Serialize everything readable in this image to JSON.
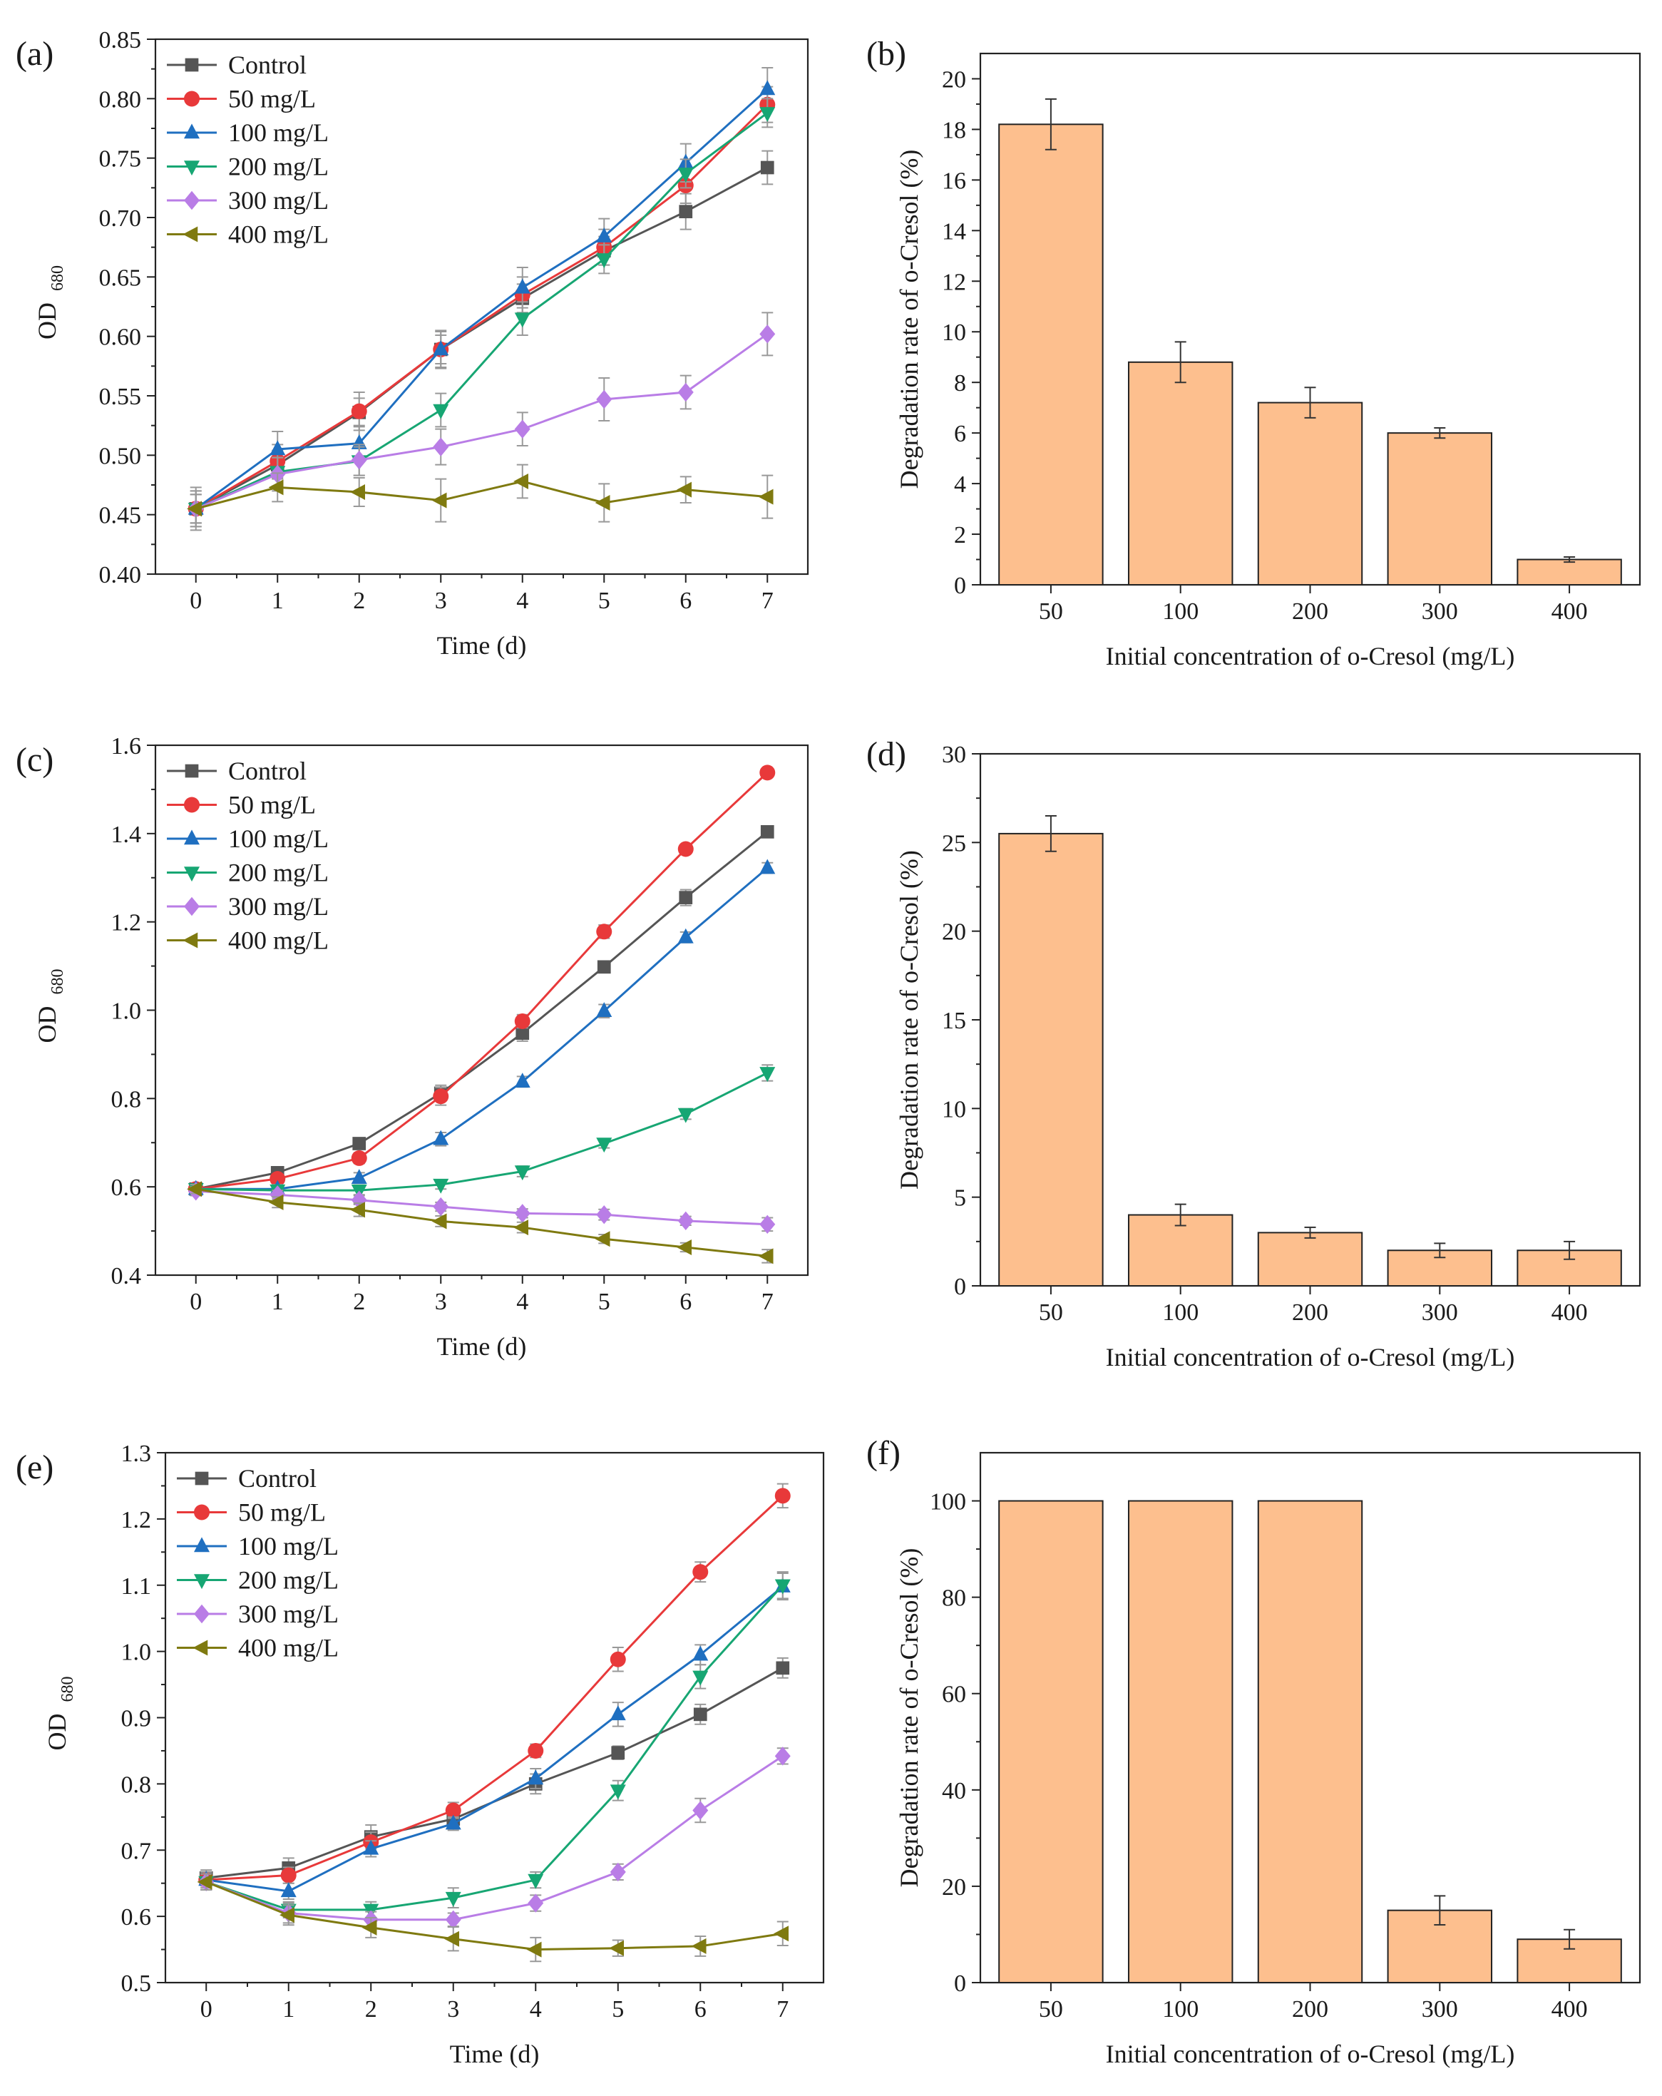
{
  "figure": {
    "background": "#ffffff",
    "series_colors": {
      "Control": "#555555",
      "50 mg/L": "#e8393a",
      "100 mg/L": "#1f6fc0",
      "200 mg/L": "#17a673",
      "300 mg/L": "#b97de6",
      "400 mg/L": "#7f7a10"
    },
    "bar_fill": "#fdbf8e",
    "bar_stroke": "#222222"
  },
  "chart_data": [
    {
      "id": "a",
      "panel_label": "(a)",
      "type": "line",
      "xlabel": "Time (d)",
      "ylabel": "OD",
      "ylabel_sub": "680",
      "x": [
        0,
        1,
        2,
        3,
        4,
        5,
        6,
        7
      ],
      "x_ticks": [
        "0",
        "1",
        "2",
        "3",
        "4",
        "5",
        "6",
        "7"
      ],
      "ylim": [
        0.4,
        0.85
      ],
      "y_ticks": [
        "0.40",
        "0.45",
        "0.50",
        "0.55",
        "0.60",
        "0.65",
        "0.70",
        "0.75",
        "0.80",
        "0.85"
      ],
      "legend_position": "top-left",
      "series": [
        {
          "name": "Control",
          "marker": "square",
          "values": [
            0.455,
            0.492,
            0.536,
            0.589,
            0.632,
            0.672,
            0.705,
            0.742
          ],
          "errors": [
            0.012,
            0.012,
            0.012,
            0.012,
            0.012,
            0.012,
            0.015,
            0.014
          ]
        },
        {
          "name": "50 mg/L",
          "marker": "circle",
          "values": [
            0.455,
            0.495,
            0.537,
            0.589,
            0.635,
            0.675,
            0.727,
            0.795
          ],
          "errors": [
            0.012,
            0.014,
            0.016,
            0.015,
            0.015,
            0.015,
            0.015,
            0.015
          ]
        },
        {
          "name": "100 mg/L",
          "marker": "triangle-up",
          "values": [
            0.455,
            0.505,
            0.51,
            0.589,
            0.641,
            0.684,
            0.746,
            0.808
          ],
          "errors": [
            0.015,
            0.015,
            0.015,
            0.016,
            0.017,
            0.015,
            0.016,
            0.018
          ]
        },
        {
          "name": "200 mg/L",
          "marker": "triangle-down",
          "values": [
            0.455,
            0.486,
            0.495,
            0.538,
            0.615,
            0.665,
            0.737,
            0.788
          ],
          "errors": [
            0.012,
            0.012,
            0.012,
            0.014,
            0.014,
            0.012,
            0.012,
            0.012
          ]
        },
        {
          "name": "300 mg/L",
          "marker": "diamond",
          "values": [
            0.455,
            0.484,
            0.496,
            0.507,
            0.522,
            0.547,
            0.553,
            0.602
          ],
          "errors": [
            0.015,
            0.014,
            0.013,
            0.015,
            0.014,
            0.018,
            0.014,
            0.018
          ]
        },
        {
          "name": "400 mg/L",
          "marker": "triangle-left",
          "values": [
            0.455,
            0.473,
            0.469,
            0.462,
            0.478,
            0.46,
            0.471,
            0.465
          ],
          "errors": [
            0.018,
            0.012,
            0.012,
            0.018,
            0.014,
            0.016,
            0.011,
            0.018
          ]
        }
      ]
    },
    {
      "id": "b",
      "panel_label": "(b)",
      "type": "bar",
      "xlabel": "Initial concentration of o-Cresol (mg/L)",
      "ylabel": "Degradation rate of o-Cresol (%)",
      "categories": [
        "50",
        "100",
        "200",
        "300",
        "400"
      ],
      "values": [
        18.2,
        8.8,
        7.2,
        6.0,
        1.0
      ],
      "errors": [
        1.0,
        0.8,
        0.6,
        0.2,
        0.1
      ],
      "ylim": [
        0,
        21
      ],
      "y_ticks": [
        "0",
        "2",
        "4",
        "6",
        "8",
        "10",
        "12",
        "14",
        "16",
        "18",
        "20"
      ]
    },
    {
      "id": "c",
      "panel_label": "(c)",
      "type": "line",
      "xlabel": "Time (d)",
      "ylabel": "OD",
      "ylabel_sub": "680",
      "x": [
        0,
        1,
        2,
        3,
        4,
        5,
        6,
        7
      ],
      "x_ticks": [
        "0",
        "1",
        "2",
        "3",
        "4",
        "5",
        "6",
        "7"
      ],
      "ylim": [
        0.4,
        1.6
      ],
      "y_ticks": [
        "0.4",
        "0.6",
        "0.8",
        "1.0",
        "1.2",
        "1.4",
        "1.6"
      ],
      "legend_position": "top-left",
      "series": [
        {
          "name": "Control",
          "marker": "square",
          "values": [
            0.595,
            0.632,
            0.698,
            0.812,
            0.948,
            1.098,
            1.255,
            1.404
          ],
          "errors": [
            0.01,
            0.01,
            0.012,
            0.018,
            0.018,
            0.012,
            0.018,
            0.012
          ]
        },
        {
          "name": "50 mg/L",
          "marker": "circle",
          "values": [
            0.595,
            0.618,
            0.665,
            0.805,
            0.975,
            1.178,
            1.365,
            1.538
          ],
          "errors": [
            0.01,
            0.01,
            0.012,
            0.02,
            0.015,
            0.015,
            0.01,
            0.01
          ]
        },
        {
          "name": "100 mg/L",
          "marker": "triangle-up",
          "values": [
            0.595,
            0.595,
            0.62,
            0.708,
            0.838,
            0.998,
            1.165,
            1.322
          ],
          "errors": [
            0.01,
            0.01,
            0.012,
            0.015,
            0.012,
            0.015,
            0.012,
            0.012
          ]
        },
        {
          "name": "200 mg/L",
          "marker": "triangle-down",
          "values": [
            0.595,
            0.592,
            0.592,
            0.605,
            0.635,
            0.698,
            0.765,
            0.858
          ],
          "errors": [
            0.01,
            0.01,
            0.01,
            0.01,
            0.012,
            0.01,
            0.012,
            0.018
          ]
        },
        {
          "name": "300 mg/L",
          "marker": "diamond",
          "values": [
            0.59,
            0.582,
            0.57,
            0.555,
            0.54,
            0.537,
            0.523,
            0.515
          ],
          "errors": [
            0.01,
            0.01,
            0.01,
            0.01,
            0.01,
            0.012,
            0.01,
            0.015
          ]
        },
        {
          "name": "400 mg/L",
          "marker": "triangle-left",
          "values": [
            0.595,
            0.565,
            0.548,
            0.522,
            0.508,
            0.482,
            0.463,
            0.443
          ],
          "errors": [
            0.01,
            0.012,
            0.015,
            0.012,
            0.012,
            0.01,
            0.01,
            0.015
          ]
        }
      ]
    },
    {
      "id": "d",
      "panel_label": "(d)",
      "type": "bar",
      "xlabel": "Initial concentration of o-Cresol (mg/L)",
      "ylabel": "Degradation rate of o-Cresol (%)",
      "categories": [
        "50",
        "100",
        "200",
        "300",
        "400"
      ],
      "values": [
        25.5,
        4.0,
        3.0,
        2.0,
        2.0
      ],
      "errors": [
        1.0,
        0.6,
        0.3,
        0.4,
        0.5
      ],
      "ylim": [
        0,
        30
      ],
      "y_ticks": [
        "0",
        "5",
        "10",
        "15",
        "20",
        "25",
        "30"
      ]
    },
    {
      "id": "e",
      "panel_label": "(e)",
      "type": "line",
      "xlabel": "Time (d)",
      "ylabel": "OD",
      "ylabel_sub": "680",
      "x": [
        0,
        1,
        2,
        3,
        4,
        5,
        6,
        7
      ],
      "x_ticks": [
        "0",
        "1",
        "2",
        "3",
        "4",
        "5",
        "6",
        "7"
      ],
      "ylim": [
        0.5,
        1.3
      ],
      "y_ticks": [
        "0.5",
        "0.6",
        "0.7",
        "0.8",
        "0.9",
        "1.0",
        "1.1",
        "1.2",
        "1.3"
      ],
      "legend_position": "top-left",
      "series": [
        {
          "name": "Control",
          "marker": "square",
          "values": [
            0.658,
            0.673,
            0.72,
            0.747,
            0.8,
            0.847,
            0.905,
            0.975
          ],
          "errors": [
            0.012,
            0.015,
            0.018,
            0.012,
            0.015,
            0.01,
            0.015,
            0.015
          ]
        },
        {
          "name": "50 mg/L",
          "marker": "circle",
          "values": [
            0.655,
            0.662,
            0.712,
            0.76,
            0.85,
            0.988,
            1.12,
            1.235
          ],
          "errors": [
            0.012,
            0.012,
            0.015,
            0.012,
            0.01,
            0.018,
            0.015,
            0.018
          ]
        },
        {
          "name": "100 mg/L",
          "marker": "triangle-up",
          "values": [
            0.655,
            0.638,
            0.702,
            0.74,
            0.808,
            0.905,
            0.995,
            1.098
          ],
          "errors": [
            0.012,
            0.012,
            0.012,
            0.01,
            0.015,
            0.018,
            0.015,
            0.02
          ]
        },
        {
          "name": "200 mg/L",
          "marker": "triangle-down",
          "values": [
            0.652,
            0.61,
            0.61,
            0.628,
            0.655,
            0.79,
            0.962,
            1.1
          ],
          "errors": [
            0.012,
            0.012,
            0.012,
            0.015,
            0.012,
            0.015,
            0.018,
            0.02
          ]
        },
        {
          "name": "300 mg/L",
          "marker": "diamond",
          "values": [
            0.652,
            0.605,
            0.595,
            0.595,
            0.62,
            0.667,
            0.76,
            0.842
          ],
          "errors": [
            0.012,
            0.015,
            0.012,
            0.01,
            0.012,
            0.012,
            0.018,
            0.012
          ]
        },
        {
          "name": "400 mg/L",
          "marker": "triangle-left",
          "values": [
            0.652,
            0.602,
            0.583,
            0.566,
            0.55,
            0.552,
            0.555,
            0.574
          ],
          "errors": [
            0.012,
            0.015,
            0.015,
            0.018,
            0.018,
            0.012,
            0.015,
            0.018
          ]
        }
      ]
    },
    {
      "id": "f",
      "panel_label": "(f)",
      "type": "bar",
      "xlabel": "Initial concentration of o-Cresol (mg/L)",
      "ylabel": "Degradation rate of o-Cresol (%)",
      "categories": [
        "50",
        "100",
        "200",
        "300",
        "400"
      ],
      "values": [
        100,
        100,
        100,
        15,
        9
      ],
      "errors": [
        0,
        0,
        0,
        3,
        2
      ],
      "ylim": [
        0,
        110
      ],
      "y_ticks": [
        "0",
        "20",
        "40",
        "60",
        "80",
        "100"
      ]
    }
  ]
}
